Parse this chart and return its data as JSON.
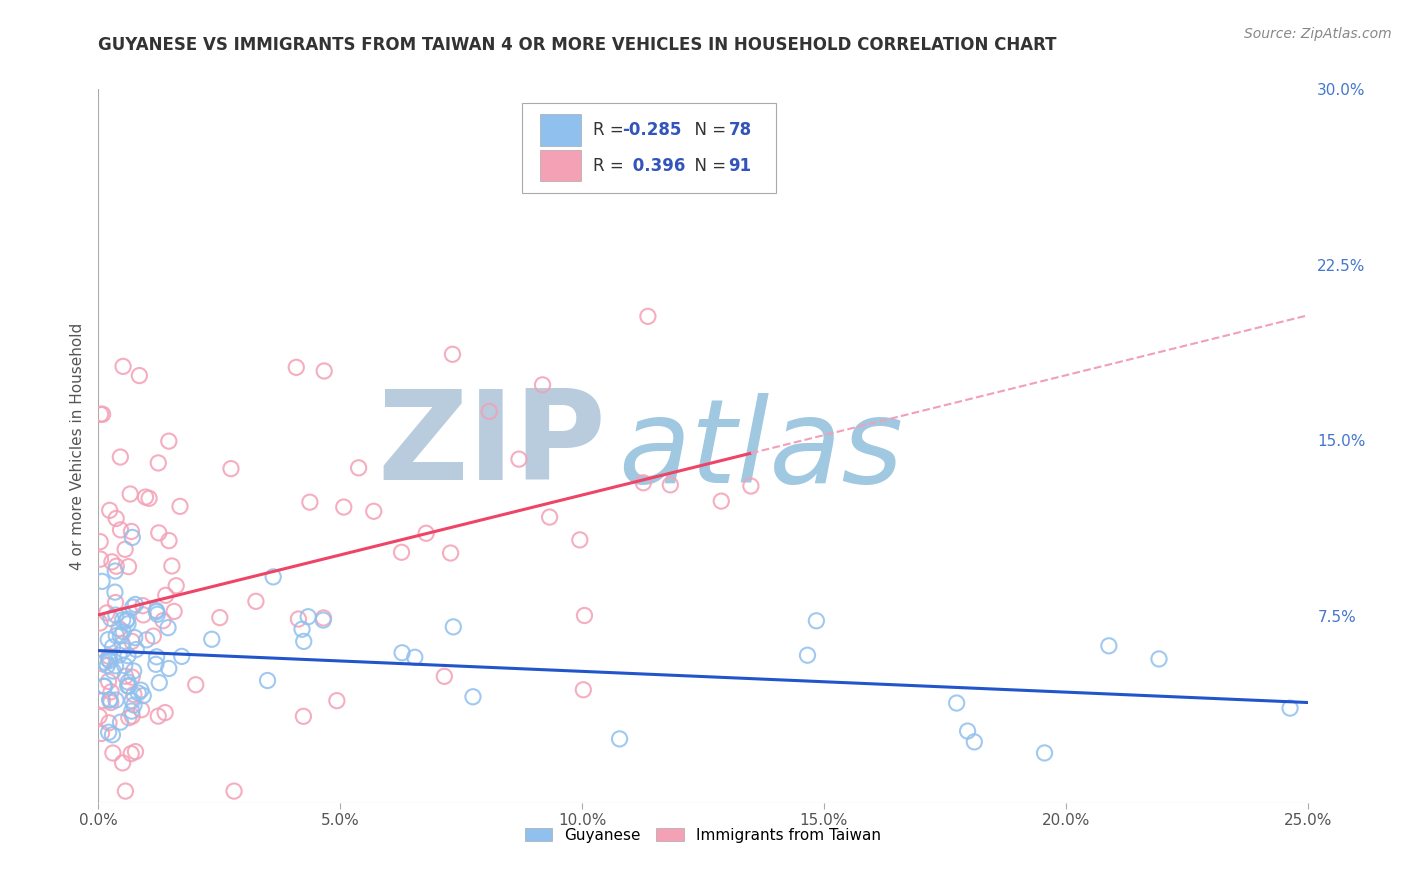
{
  "title": "GUYANESE VS IMMIGRANTS FROM TAIWAN 4 OR MORE VEHICLES IN HOUSEHOLD CORRELATION CHART",
  "source": "Source: ZipAtlas.com",
  "ylabel": "4 or more Vehicles in Household",
  "xlim": [
    0.0,
    0.25
  ],
  "ylim": [
    -0.005,
    0.3
  ],
  "xticks": [
    0.0,
    0.05,
    0.1,
    0.15,
    0.2,
    0.25
  ],
  "xticklabels": [
    "0.0%",
    "5.0%",
    "10.0%",
    "15.0%",
    "20.0%",
    "25.0%"
  ],
  "yticks_right": [
    0.075,
    0.15,
    0.225,
    0.3
  ],
  "yticklabels_right": [
    "7.5%",
    "15.0%",
    "22.5%",
    "30.0%"
  ],
  "legend_label1": "Guyanese",
  "legend_label2": "Immigrants from Taiwan",
  "color_guyanese": "#90C0EE",
  "color_taiwan": "#F4A0B5",
  "color_line_guyanese": "#2255CC",
  "color_line_taiwan": "#EE4466",
  "color_line_taiwan_dash": "#F0A0B8",
  "watermark_zip": "ZIP",
  "watermark_atlas": "atlas",
  "watermark_color_zip": "#B8CCDD",
  "watermark_color_atlas": "#A0C8E0",
  "background_color": "#FFFFFF",
  "grid_color": "#CCCCCC",
  "R1": -0.285,
  "N1": 78,
  "R2": 0.396,
  "N2": 91,
  "legend_text_color": "#3355BB",
  "legend_r_color": "#222222",
  "seed": 42
}
